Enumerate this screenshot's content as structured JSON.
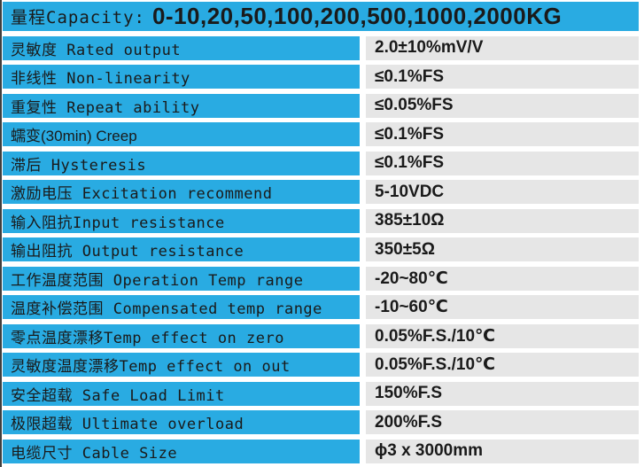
{
  "colors": {
    "blue": "#29ABE2",
    "gray": "#E6E6E6",
    "text": "#1A1A1A",
    "border": "#3F3F3F"
  },
  "table": {
    "header": {
      "label": "量程Capacity:",
      "values": "0-10,20,50,100,200,500,1000,2000KG"
    },
    "rows": [
      {
        "label": "灵敏度 Rated output",
        "value": "2.0±10%mV/V"
      },
      {
        "label": "非线性 Non-linearity",
        "value": "≤0.1%FS"
      },
      {
        "label": "重复性 Repeat ability",
        "value": "≤0.05%FS"
      },
      {
        "label": "蠕变(30min) Creep",
        "value": "≤0.1%FS",
        "label_font": "sans"
      },
      {
        "label": "滞后 Hysteresis",
        "value": "≤0.1%FS"
      },
      {
        "label": "激励电压 Excitation recommend",
        "value": "5-10VDC"
      },
      {
        "label": "输入阻抗Input resistance",
        "value": "385±10Ω"
      },
      {
        "label": "输出阻抗 Output resistance",
        "value": "350±5Ω"
      },
      {
        "label": "工作温度范围 Operation Temp range",
        "value": "-20~80℃"
      },
      {
        "label": "温度补偿范围 Compensated temp range",
        "value": "-10~60℃"
      },
      {
        "label": "零点温度漂移Temp effect on zero",
        "value": "0.05%F.S./10℃"
      },
      {
        "label": "灵敏度温度漂移Temp effect on out",
        "value": "0.05%F.S./10℃"
      },
      {
        "label": "安全超载 Safe Load Limit",
        "value": "150%F.S"
      },
      {
        "label": "极限超载 Ultimate overload",
        "value": "200%F.S"
      },
      {
        "label": "电缆尺寸 Cable Size",
        "value": "ϕ3 x 3000mm"
      }
    ]
  }
}
